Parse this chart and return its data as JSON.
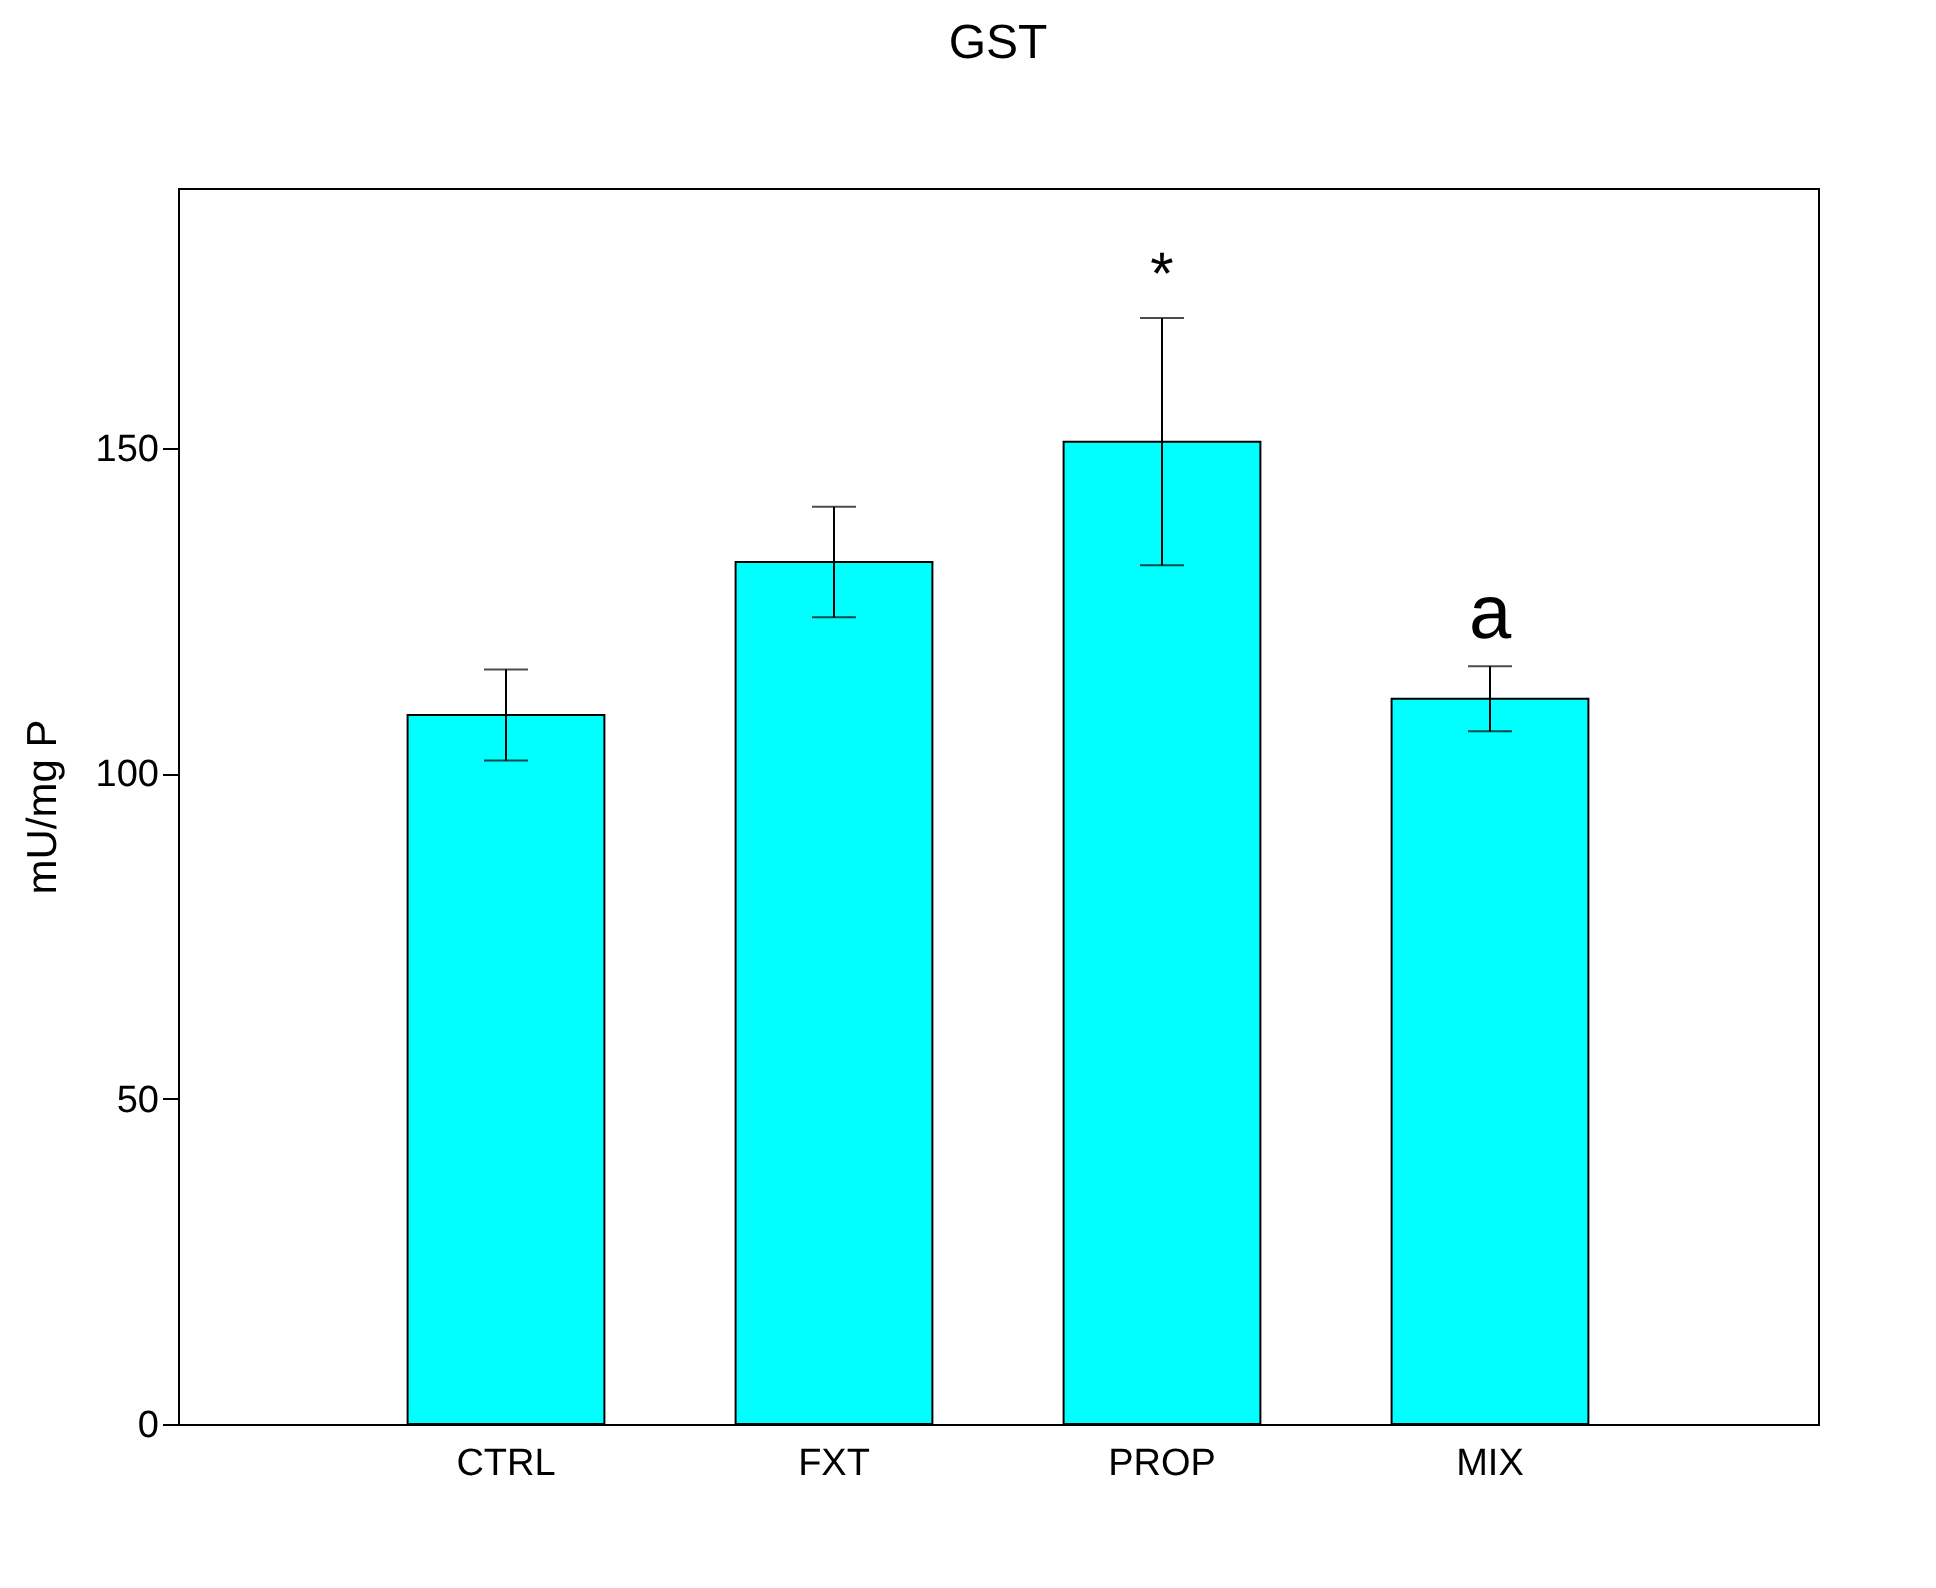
{
  "chart_data": {
    "type": "bar",
    "title": "GST",
    "ylabel": "mU/mg P",
    "categories": [
      "CTRL",
      "FXT",
      "PROP",
      "MIX"
    ],
    "values": [
      109,
      132.5,
      151,
      111.5
    ],
    "errors": [
      7,
      8.5,
      19,
      5
    ],
    "color": "#00ffff",
    "ylim": [
      0,
      190
    ],
    "yticks": [
      0,
      50,
      100,
      150
    ],
    "grid": false,
    "annotations": [
      "*",
      "a"
    ]
  }
}
